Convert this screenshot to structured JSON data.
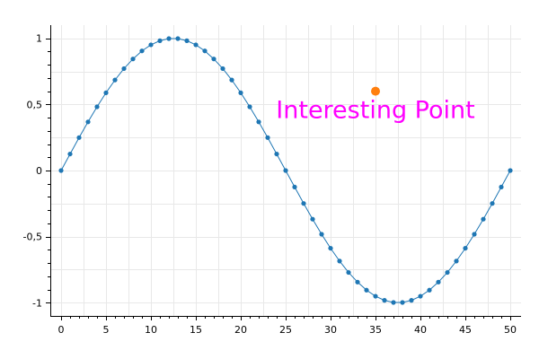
{
  "chart_data": {
    "type": "scatter",
    "title": "",
    "xlabel": "",
    "ylabel": "",
    "xlim": [
      -1.2,
      51.2
    ],
    "ylim": [
      -1.1,
      1.1
    ],
    "grid": true,
    "x_ticks": [
      0,
      5,
      10,
      15,
      20,
      25,
      30,
      35,
      40,
      45,
      50
    ],
    "x_tick_labels": [
      "0",
      "5",
      "10",
      "15",
      "20",
      "25",
      "30",
      "35",
      "40",
      "45",
      "50"
    ],
    "y_ticks": [
      -1,
      -0.5,
      0,
      0.5,
      1
    ],
    "y_tick_labels": [
      "-1",
      "-0,5",
      "0",
      "0,5",
      "1"
    ],
    "series": [
      {
        "color": "#1f77b4",
        "style": "line-with-markers",
        "x": [
          0,
          1,
          2,
          3,
          4,
          5,
          6,
          7,
          8,
          9,
          10,
          11,
          12,
          13,
          14,
          15,
          16,
          17,
          18,
          19,
          20,
          21,
          22,
          23,
          24,
          25,
          26,
          27,
          28,
          29,
          30,
          31,
          32,
          33,
          34,
          35,
          36,
          37,
          38,
          39,
          40,
          41,
          42,
          43,
          44,
          45,
          46,
          47,
          48,
          49,
          50
        ],
        "y": [
          0,
          0.125,
          0.249,
          0.368,
          0.482,
          0.588,
          0.685,
          0.771,
          0.844,
          0.905,
          0.951,
          0.982,
          0.998,
          0.998,
          0.982,
          0.951,
          0.905,
          0.844,
          0.771,
          0.685,
          0.588,
          0.482,
          0.368,
          0.249,
          0.125,
          0,
          -0.125,
          -0.249,
          -0.368,
          -0.482,
          -0.588,
          -0.685,
          -0.771,
          -0.844,
          -0.905,
          -0.951,
          -0.982,
          -0.998,
          -0.998,
          -0.982,
          -0.951,
          -0.905,
          -0.844,
          -0.771,
          -0.685,
          -0.588,
          -0.482,
          -0.368,
          -0.249,
          -0.125,
          0
        ]
      },
      {
        "color": "#ff7f0e",
        "style": "marker",
        "x": [
          35
        ],
        "y": [
          0.6
        ]
      }
    ],
    "annotations": [
      {
        "text": "Interesting Point",
        "x": 35,
        "y": 0.6,
        "color": "#ff00ff"
      }
    ]
  }
}
